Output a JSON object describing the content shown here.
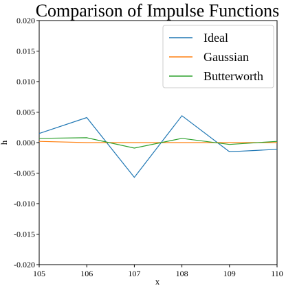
{
  "chart_data": {
    "type": "line",
    "title": "Comparison of Impulse Functions",
    "xlabel": "x",
    "ylabel": "h",
    "xlim": [
      105,
      110
    ],
    "ylim": [
      -0.02,
      0.02
    ],
    "x_ticks": [
      "105",
      "106",
      "107",
      "108",
      "109",
      "110"
    ],
    "y_ticks": [
      "0.020",
      "0.015",
      "0.010",
      "0.005",
      "0.000",
      "-0.005",
      "-0.010",
      "-0.015",
      "-0.020"
    ],
    "grid": false,
    "legend_position": "top-right",
    "x": [
      105,
      106,
      107,
      108,
      109,
      110
    ],
    "series": [
      {
        "name": "Ideal",
        "color": "#1f77b4",
        "values": [
          0.0015,
          0.0041,
          -0.0057,
          0.0044,
          -0.0015,
          -0.0011
        ]
      },
      {
        "name": "Gaussian",
        "color": "#ff7f0e",
        "values": [
          0.0002,
          0.0,
          0.0,
          0.0,
          0.0,
          0.0
        ]
      },
      {
        "name": "Butterworth",
        "color": "#2ca02c",
        "values": [
          0.0007,
          0.0008,
          -0.0009,
          0.0007,
          -0.0003,
          0.0002
        ]
      }
    ]
  }
}
